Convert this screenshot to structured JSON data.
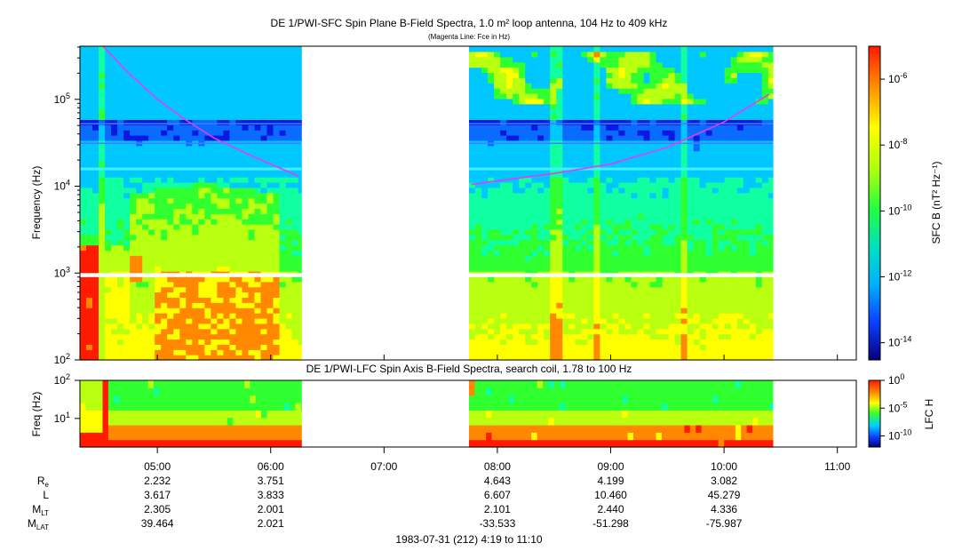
{
  "header": {
    "title": "DE 1/PWI-SFC  Spin Plane B-Field Spectra, 1.0 m² loop antenna, 104 Hz to 409 kHz",
    "subtitle": "(Magenta Line: Fce in Hz)"
  },
  "chart_data": [
    {
      "type": "heatmap",
      "panel": "SFC",
      "title": "DE 1/PWI-SFC  Spin Plane B-Field Spectra, 1.0 m² loop antenna, 104 Hz to 409 kHz",
      "ylabel": "Frequency (Hz)",
      "yscale": "log",
      "ylim": [
        100,
        409000
      ],
      "y_ticks": [
        {
          "label": "10",
          "sup": "2",
          "value": 100
        },
        {
          "label": "10",
          "sup": "3",
          "value": 1000
        },
        {
          "label": "10",
          "sup": "4",
          "value": 10000
        },
        {
          "label": "10",
          "sup": "5",
          "value": 100000
        }
      ],
      "xlim_hours": [
        4.317,
        11.167
      ],
      "data_intervals_hours": [
        [
          4.317,
          6.27
        ],
        [
          7.75,
          10.43
        ]
      ],
      "colorbar": {
        "label": "SFC B (nT² Hz⁻¹)",
        "scale": "log",
        "range": [
          3e-15,
          1e-05
        ],
        "ticks": [
          {
            "label": "10",
            "sup": "-6",
            "value": 1e-06
          },
          {
            "label": "10",
            "sup": "-8",
            "value": 1e-08
          },
          {
            "label": "10",
            "sup": "-10",
            "value": 1e-10
          },
          {
            "label": "10",
            "sup": "-12",
            "value": 1e-12
          },
          {
            "label": "10",
            "sup": "-14",
            "value": 1e-14
          }
        ]
      },
      "fce_line": {
        "name": "Fce in Hz",
        "color": "#e63cf0",
        "segments": [
          {
            "t": [
              4.52,
              4.75,
              5.0,
              5.25,
              5.5,
              5.75,
              6.0,
              6.25
            ],
            "f": [
              409000,
              200000,
              100000,
              58000,
              36000,
              25000,
              18000,
              13000
            ]
          },
          {
            "t": [
              7.77,
              8.0,
              8.5,
              9.0,
              9.5,
              10.0,
              10.4
            ],
            "f": [
              10500,
              11500,
              14000,
              18000,
              28000,
              55000,
              115000
            ]
          }
        ]
      }
    },
    {
      "type": "heatmap",
      "panel": "LFC",
      "title": "DE 1/PWI-LFC  Spin Axis B-Field Spectra, search coil, 1.78 to 100 Hz",
      "ylabel": "Freq (Hz)",
      "yscale": "log",
      "ylim": [
        1.78,
        100
      ],
      "y_ticks": [
        {
          "label": "10",
          "sup": "2",
          "value": 100
        },
        {
          "label": "10",
          "sup": "1",
          "value": 10
        }
      ],
      "colorbar": {
        "label": "LFC H",
        "scale": "log",
        "range": [
          1e-12,
          1
        ],
        "ticks": [
          {
            "label": "10",
            "sup": "0",
            "value": 1
          },
          {
            "label": "10",
            "sup": "-5",
            "value": 1e-05
          },
          {
            "label": "10",
            "sup": "-10",
            "value": 1e-10
          }
        ]
      }
    }
  ],
  "time_axis": {
    "ticks": [
      {
        "label": "05:00",
        "hour": 5
      },
      {
        "label": "06:00",
        "hour": 6
      },
      {
        "label": "07:00",
        "hour": 7
      },
      {
        "label": "08:00",
        "hour": 8
      },
      {
        "label": "09:00",
        "hour": 9
      },
      {
        "label": "10:00",
        "hour": 10
      },
      {
        "label": "11:00",
        "hour": 11
      }
    ],
    "date_label": "1983-07-31 (212) 4:19 to 11:10"
  },
  "ephemeris": {
    "rows": [
      {
        "label": "R",
        "sub": "e",
        "values": [
          "2.232",
          "3.751",
          "",
          "4.643",
          "4.199",
          "3.082"
        ]
      },
      {
        "label": "L",
        "sub": "",
        "values": [
          "3.617",
          "3.833",
          "",
          "6.607",
          "10.460",
          "45.279"
        ]
      },
      {
        "label": "M",
        "sub": "LT",
        "values": [
          "2.305",
          "2.001",
          "",
          "2.101",
          "2.440",
          "4.336"
        ]
      },
      {
        "label": "M",
        "sub": "LAT",
        "values": [
          "39.464",
          "2.021",
          "",
          "-33.533",
          "-51.298",
          "-75.987"
        ]
      }
    ]
  },
  "palette": {
    "c0": "#06007d",
    "c1": "#0a18e0",
    "c2": "#0a6cff",
    "c3": "#00c8ff",
    "c4": "#10ffa0",
    "c5": "#30ff30",
    "c6": "#b8ff10",
    "c7": "#ffff00",
    "c8": "#ff8800",
    "c9": "#ff1a00",
    "fce": "#e63cf0"
  }
}
